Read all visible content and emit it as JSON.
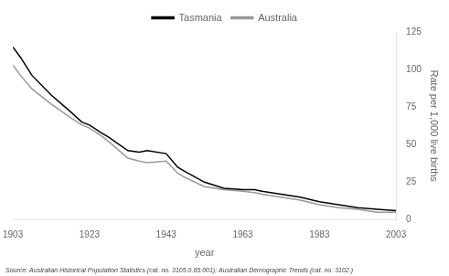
{
  "chart_data": {
    "type": "line",
    "x_label": "year",
    "y_label": "Rate per 1,000 live births",
    "annotations": [
      "Source: Australian Historical Population Statistics (cat. no. 3105.0.65.001); Australian Demographic Trends (cat. no. 3102.)"
    ],
    "x": [
      1903,
      1905,
      1908,
      1913,
      1918,
      1921,
      1923,
      1926,
      1928,
      1933,
      1936,
      1938,
      1943,
      1946,
      1948,
      1953,
      1958,
      1963,
      1966,
      1968,
      1973,
      1978,
      1983,
      1988,
      1993,
      1998,
      2003
    ],
    "series": [
      {
        "name": "Tasmania",
        "color": "#000000",
        "values": [
          115,
          108,
          96,
          83,
          72,
          65,
          63,
          58,
          55,
          46,
          45,
          46,
          44,
          35,
          32,
          25,
          21,
          20,
          20,
          19,
          17,
          15,
          12,
          10,
          8,
          7,
          6
        ]
      },
      {
        "name": "Australia",
        "color": "#999999",
        "values": [
          103,
          96,
          87,
          77,
          68,
          63,
          61,
          56,
          52,
          41,
          39,
          38,
          39,
          31,
          28,
          22,
          20,
          19,
          18,
          17,
          15,
          13,
          10,
          8,
          7,
          5,
          5
        ]
      }
    ],
    "xlim": [
      1903,
      2003
    ],
    "xticks": [
      1903,
      1923,
      1943,
      1963,
      1983,
      2003
    ],
    "ylim": [
      0,
      125
    ],
    "yticks": [
      0,
      25,
      50,
      75,
      100,
      125
    ],
    "grid": false,
    "legend": "top"
  }
}
